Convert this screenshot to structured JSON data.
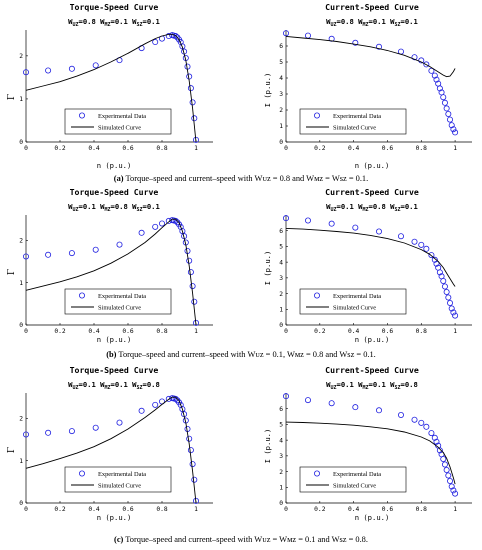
{
  "captions": [
    {
      "letter": "(a)",
      "text": " Torque–speed and current–speed with Wᴜᴢ = 0.8 and Wᴍᴢ = Wsᴢ = 0.1."
    },
    {
      "letter": "(b)",
      "text": " Torque–speed and current–speed with Wᴜᴢ = 0.1, Wᴍᴢ = 0.8 and Wsᴢ = 0.1."
    },
    {
      "letter": "(c)",
      "text": " Torque–speed and current–speed with Wᴜᴢ = Wᴍᴢ = 0.1 and Wsᴢ = 0.8."
    }
  ],
  "colors": {
    "experimental": "#1f1fe0",
    "simulated": "#000000",
    "axes": "#000000"
  },
  "chart_data": [
    {
      "type": "scatter",
      "title": "Torque-Speed Curve",
      "weights": {
        "uz": "0.8",
        "mz": "0.1",
        "sz": "0.1"
      },
      "xlabel": "n (p.u.)",
      "ylabel": "Γ",
      "xlim": [
        0,
        1.1
      ],
      "ylim": [
        0,
        2.6
      ],
      "xticks": [
        "0",
        "0.2",
        "0.4",
        "0.6",
        "0.8",
        "1"
      ],
      "xtick_values": [
        0,
        0.2,
        0.4,
        0.6,
        0.8,
        1
      ],
      "yticks": [
        "0",
        "1",
        "2"
      ],
      "ytick_values": [
        0,
        1,
        2
      ],
      "legend_position": "lower-left",
      "series": [
        {
          "name": "Experimental Data",
          "kind": "markers",
          "x": [
            0,
            0.13,
            0.27,
            0.41,
            0.55,
            0.68,
            0.76,
            0.8,
            0.84,
            0.86,
            0.87,
            0.88,
            0.89,
            0.9,
            0.91,
            0.92,
            0.93,
            0.94,
            0.95,
            0.96,
            0.97,
            0.98,
            0.99,
            1.0
          ],
          "y": [
            1.62,
            1.66,
            1.7,
            1.78,
            1.9,
            2.18,
            2.32,
            2.4,
            2.46,
            2.48,
            2.47,
            2.46,
            2.43,
            2.38,
            2.32,
            2.22,
            2.1,
            1.95,
            1.75,
            1.52,
            1.25,
            0.92,
            0.55,
            0.05
          ]
        },
        {
          "name": "Simulated Curve",
          "kind": "line",
          "x": [
            0,
            0.1,
            0.2,
            0.3,
            0.4,
            0.5,
            0.6,
            0.7,
            0.76,
            0.8,
            0.84,
            0.86,
            0.88,
            0.9,
            0.92,
            0.94,
            0.96,
            0.98,
            1.0
          ],
          "y": [
            1.2,
            1.3,
            1.4,
            1.53,
            1.68,
            1.86,
            2.06,
            2.28,
            2.4,
            2.46,
            2.5,
            2.5,
            2.47,
            2.38,
            2.2,
            1.9,
            1.42,
            0.78,
            0.0
          ]
        }
      ]
    },
    {
      "type": "scatter",
      "title": "Current-Speed Curve",
      "weights": {
        "uz": "0.8",
        "mz": "0.1",
        "sz": "0.1"
      },
      "xlabel": "n (p.u.)",
      "ylabel": "I (p.u.)",
      "xlim": [
        0,
        1.1
      ],
      "ylim": [
        0,
        7
      ],
      "xticks": [
        "0",
        "0.2",
        "0.4",
        "0.6",
        "0.8",
        "1"
      ],
      "xtick_values": [
        0,
        0.2,
        0.4,
        0.6,
        0.8,
        1
      ],
      "yticks": [
        "0",
        "1",
        "2",
        "3",
        "4",
        "5",
        "6"
      ],
      "ytick_values": [
        0,
        1,
        2,
        3,
        4,
        5,
        6
      ],
      "legend_position": "lower-left",
      "series": [
        {
          "name": "Experimental Data",
          "kind": "markers",
          "x": [
            0,
            0.13,
            0.27,
            0.41,
            0.55,
            0.68,
            0.76,
            0.8,
            0.83,
            0.86,
            0.88,
            0.89,
            0.9,
            0.91,
            0.92,
            0.93,
            0.94,
            0.95,
            0.96,
            0.97,
            0.98,
            0.99,
            1.0
          ],
          "y": [
            6.8,
            6.65,
            6.45,
            6.2,
            5.95,
            5.65,
            5.3,
            5.1,
            4.85,
            4.45,
            4.15,
            3.9,
            3.65,
            3.35,
            3.1,
            2.8,
            2.45,
            2.1,
            1.75,
            1.4,
            1.05,
            0.8,
            0.6
          ]
        },
        {
          "name": "Simulated Curve",
          "kind": "line",
          "x": [
            0,
            0.1,
            0.2,
            0.3,
            0.4,
            0.5,
            0.6,
            0.7,
            0.8,
            0.85,
            0.9,
            0.93,
            0.95,
            0.97,
            0.99,
            1.0
          ],
          "y": [
            6.6,
            6.5,
            6.4,
            6.28,
            6.12,
            5.95,
            5.72,
            5.42,
            5.0,
            4.72,
            4.38,
            4.18,
            4.08,
            4.12,
            4.4,
            4.6
          ]
        }
      ]
    },
    {
      "type": "scatter",
      "title": "Torque-Speed Curve",
      "weights": {
        "uz": "0.1",
        "mz": "0.8",
        "sz": "0.1"
      },
      "xlabel": "n (p.u.)",
      "ylabel": "Γ",
      "xlim": [
        0,
        1.1
      ],
      "ylim": [
        0,
        2.6
      ],
      "xticks": [
        "0",
        "0.2",
        "0.4",
        "0.6",
        "0.8",
        "1"
      ],
      "xtick_values": [
        0,
        0.2,
        0.4,
        0.6,
        0.8,
        1
      ],
      "yticks": [
        "0",
        "1",
        "2"
      ],
      "ytick_values": [
        0,
        1,
        2
      ],
      "legend_position": "lower-left",
      "series": [
        {
          "name": "Experimental Data",
          "kind": "markers",
          "x": [
            0,
            0.13,
            0.27,
            0.41,
            0.55,
            0.68,
            0.76,
            0.8,
            0.84,
            0.86,
            0.87,
            0.88,
            0.89,
            0.9,
            0.91,
            0.92,
            0.93,
            0.94,
            0.95,
            0.96,
            0.97,
            0.98,
            0.99,
            1.0
          ],
          "y": [
            1.62,
            1.66,
            1.7,
            1.78,
            1.9,
            2.18,
            2.32,
            2.4,
            2.46,
            2.48,
            2.47,
            2.46,
            2.43,
            2.38,
            2.32,
            2.22,
            2.1,
            1.95,
            1.75,
            1.52,
            1.25,
            0.92,
            0.55,
            0.05
          ]
        },
        {
          "name": "Simulated Curve",
          "kind": "line",
          "x": [
            0,
            0.1,
            0.2,
            0.3,
            0.4,
            0.5,
            0.6,
            0.7,
            0.76,
            0.8,
            0.84,
            0.86,
            0.88,
            0.9,
            0.92,
            0.94,
            0.96,
            0.98,
            1.0
          ],
          "y": [
            0.82,
            0.92,
            1.02,
            1.14,
            1.28,
            1.46,
            1.68,
            1.95,
            2.15,
            2.3,
            2.44,
            2.5,
            2.5,
            2.42,
            2.22,
            1.9,
            1.4,
            0.75,
            0.0
          ]
        }
      ]
    },
    {
      "type": "scatter",
      "title": "Current-Speed Curve",
      "weights": {
        "uz": "0.1",
        "mz": "0.8",
        "sz": "0.1"
      },
      "xlabel": "n (p.u.)",
      "ylabel": "I (p.u.)",
      "xlim": [
        0,
        1.1
      ],
      "ylim": [
        0,
        7
      ],
      "xticks": [
        "0",
        "0.2",
        "0.4",
        "0.6",
        "0.8",
        "1"
      ],
      "xtick_values": [
        0,
        0.2,
        0.4,
        0.6,
        0.8,
        1
      ],
      "yticks": [
        "0",
        "1",
        "2",
        "3",
        "4",
        "5",
        "6"
      ],
      "ytick_values": [
        0,
        1,
        2,
        3,
        4,
        5,
        6
      ],
      "legend_position": "lower-left",
      "series": [
        {
          "name": "Experimental Data",
          "kind": "markers",
          "x": [
            0,
            0.13,
            0.27,
            0.41,
            0.55,
            0.68,
            0.76,
            0.8,
            0.83,
            0.86,
            0.88,
            0.89,
            0.9,
            0.91,
            0.92,
            0.93,
            0.94,
            0.95,
            0.96,
            0.97,
            0.98,
            0.99,
            1.0
          ],
          "y": [
            6.8,
            6.65,
            6.45,
            6.2,
            5.95,
            5.65,
            5.3,
            5.1,
            4.85,
            4.45,
            4.15,
            3.9,
            3.65,
            3.35,
            3.1,
            2.8,
            2.45,
            2.1,
            1.75,
            1.4,
            1.05,
            0.8,
            0.6
          ]
        },
        {
          "name": "Simulated Curve",
          "kind": "line",
          "x": [
            0,
            0.1,
            0.2,
            0.3,
            0.4,
            0.5,
            0.6,
            0.7,
            0.8,
            0.85,
            0.9,
            0.93,
            0.95,
            0.97,
            0.99,
            1.0
          ],
          "y": [
            6.15,
            6.1,
            6.03,
            5.95,
            5.85,
            5.7,
            5.5,
            5.22,
            4.8,
            4.5,
            4.05,
            3.65,
            3.3,
            2.95,
            2.6,
            2.45
          ]
        }
      ]
    },
    {
      "type": "scatter",
      "title": "Torque-Speed Curve",
      "weights": {
        "uz": "0.1",
        "mz": "0.1",
        "sz": "0.8"
      },
      "xlabel": "n (p.u.)",
      "ylabel": "Γ",
      "xlim": [
        0,
        1.1
      ],
      "ylim": [
        0,
        2.6
      ],
      "xticks": [
        "0",
        "0.2",
        "0.4",
        "0.6",
        "0.8",
        "1"
      ],
      "xtick_values": [
        0,
        0.2,
        0.4,
        0.6,
        0.8,
        1
      ],
      "yticks": [
        "0",
        "1",
        "2"
      ],
      "ytick_values": [
        0,
        1,
        2
      ],
      "legend_position": "lower-left",
      "series": [
        {
          "name": "Experimental Data",
          "kind": "markers",
          "x": [
            0,
            0.13,
            0.27,
            0.41,
            0.55,
            0.68,
            0.76,
            0.8,
            0.84,
            0.86,
            0.87,
            0.88,
            0.89,
            0.9,
            0.91,
            0.92,
            0.93,
            0.94,
            0.95,
            0.96,
            0.97,
            0.98,
            0.99,
            1.0
          ],
          "y": [
            1.62,
            1.66,
            1.7,
            1.78,
            1.9,
            2.18,
            2.32,
            2.4,
            2.46,
            2.48,
            2.47,
            2.46,
            2.43,
            2.38,
            2.32,
            2.22,
            2.1,
            1.95,
            1.75,
            1.52,
            1.25,
            0.92,
            0.55,
            0.05
          ]
        },
        {
          "name": "Simulated Curve",
          "kind": "line",
          "x": [
            0,
            0.1,
            0.2,
            0.3,
            0.4,
            0.5,
            0.6,
            0.7,
            0.76,
            0.8,
            0.84,
            0.86,
            0.88,
            0.9,
            0.92,
            0.94,
            0.96,
            0.98,
            1.0
          ],
          "y": [
            0.82,
            0.93,
            1.05,
            1.18,
            1.33,
            1.52,
            1.75,
            2.02,
            2.2,
            2.33,
            2.45,
            2.5,
            2.5,
            2.42,
            2.22,
            1.9,
            1.4,
            0.75,
            0.0
          ]
        }
      ]
    },
    {
      "type": "scatter",
      "title": "Current-Speed Curve",
      "weights": {
        "uz": "0.1",
        "mz": "0.1",
        "sz": "0.8"
      },
      "xlabel": "n (p.u.)",
      "ylabel": "I (p.u.)",
      "xlim": [
        0,
        1.1
      ],
      "ylim": [
        0,
        7
      ],
      "xticks": [
        "0",
        "0.2",
        "0.4",
        "0.6",
        "0.8",
        "1"
      ],
      "xtick_values": [
        0,
        0.2,
        0.4,
        0.6,
        0.8,
        1
      ],
      "yticks": [
        "0",
        "1",
        "2",
        "3",
        "4",
        "5",
        "6"
      ],
      "ytick_values": [
        0,
        1,
        2,
        3,
        4,
        5,
        6
      ],
      "legend_position": "lower-left",
      "series": [
        {
          "name": "Experimental Data",
          "kind": "markers",
          "x": [
            0,
            0.13,
            0.27,
            0.41,
            0.55,
            0.68,
            0.76,
            0.8,
            0.83,
            0.86,
            0.88,
            0.89,
            0.9,
            0.91,
            0.92,
            0.93,
            0.94,
            0.95,
            0.96,
            0.97,
            0.98,
            0.99,
            1.0
          ],
          "y": [
            6.8,
            6.55,
            6.35,
            6.1,
            5.9,
            5.6,
            5.3,
            5.1,
            4.85,
            4.45,
            4.15,
            3.9,
            3.65,
            3.35,
            3.1,
            2.8,
            2.45,
            2.1,
            1.75,
            1.4,
            1.05,
            0.8,
            0.6
          ]
        },
        {
          "name": "Simulated Curve",
          "kind": "line",
          "x": [
            0,
            0.1,
            0.2,
            0.3,
            0.4,
            0.5,
            0.6,
            0.7,
            0.8,
            0.85,
            0.9,
            0.93,
            0.95,
            0.97,
            0.99,
            1.0
          ],
          "y": [
            5.15,
            5.12,
            5.08,
            5.02,
            4.95,
            4.85,
            4.72,
            4.52,
            4.2,
            3.95,
            3.55,
            3.2,
            2.85,
            2.3,
            1.6,
            1.2
          ]
        }
      ]
    }
  ]
}
